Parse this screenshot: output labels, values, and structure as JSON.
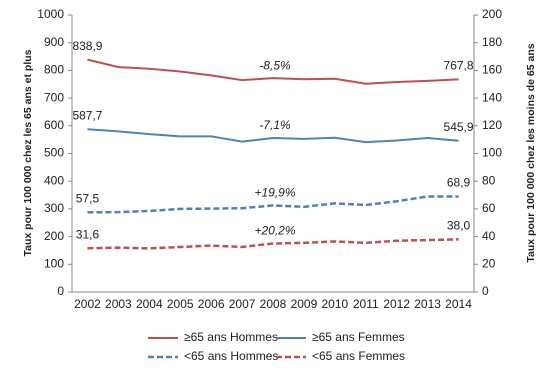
{
  "chart_data": {
    "type": "line",
    "y_label": "Taux pour 100 000 chez les 65 ans et plus",
    "y2_label": "Taux pour 100 000 chez les moins de 65 ans",
    "categories": [
      "2002",
      "2003",
      "2004",
      "2005",
      "2006",
      "2007",
      "2008",
      "2009",
      "2010",
      "2011",
      "2012",
      "2013",
      "2014"
    ],
    "ylim": [
      0,
      1000
    ],
    "yticks": [
      0,
      100,
      200,
      300,
      400,
      500,
      600,
      700,
      800,
      900,
      1000
    ],
    "y2lim": [
      0,
      200
    ],
    "y2ticks": [
      0,
      20,
      40,
      60,
      80,
      100,
      120,
      140,
      160,
      180,
      200
    ],
    "series": [
      {
        "name": "≥65 ans Hommes",
        "color": "#c0504d",
        "dash": false,
        "annotation": "-8,5%",
        "values": [
          838.9,
          812,
          806,
          796,
          782,
          765,
          772,
          768,
          770,
          752,
          758,
          762,
          767.8
        ],
        "value_labels": [
          "838,9",
          null,
          null,
          null,
          null,
          null,
          null,
          null,
          null,
          null,
          null,
          null,
          "767,8"
        ]
      },
      {
        "name": "≥65 ans Femmes",
        "color": "#4f81bd",
        "dash": false,
        "annotation": "-7,1%",
        "values": [
          587.7,
          580,
          570,
          562,
          562,
          543,
          556,
          553,
          557,
          541,
          547,
          556,
          545.9
        ],
        "value_labels": [
          "587,7",
          null,
          null,
          null,
          null,
          null,
          null,
          null,
          null,
          null,
          null,
          null,
          "545,9"
        ]
      },
      {
        "name": "<65 ans Hommes",
        "color": "#4f81bd",
        "dash": true,
        "axis": "y2",
        "annotation": "+19,9%",
        "values": [
          57.5,
          57.7,
          58.5,
          60,
          60.2,
          60.5,
          62.5,
          61.5,
          64,
          62.8,
          65.5,
          69,
          68.9
        ],
        "value_labels": [
          "57,5",
          null,
          null,
          null,
          null,
          null,
          null,
          null,
          null,
          null,
          null,
          null,
          "68,9"
        ]
      },
      {
        "name": "<65 ans Femmes",
        "color": "#c0504d",
        "dash": true,
        "axis": "y2",
        "annotation": "+20,2%",
        "values": [
          31.6,
          32,
          31.5,
          32.5,
          33.5,
          32.5,
          35,
          35.5,
          36.5,
          35.5,
          37,
          37.5,
          38.0
        ],
        "value_labels": [
          "31,6",
          null,
          null,
          null,
          null,
          null,
          null,
          null,
          null,
          null,
          null,
          null,
          "38,0"
        ]
      }
    ]
  }
}
